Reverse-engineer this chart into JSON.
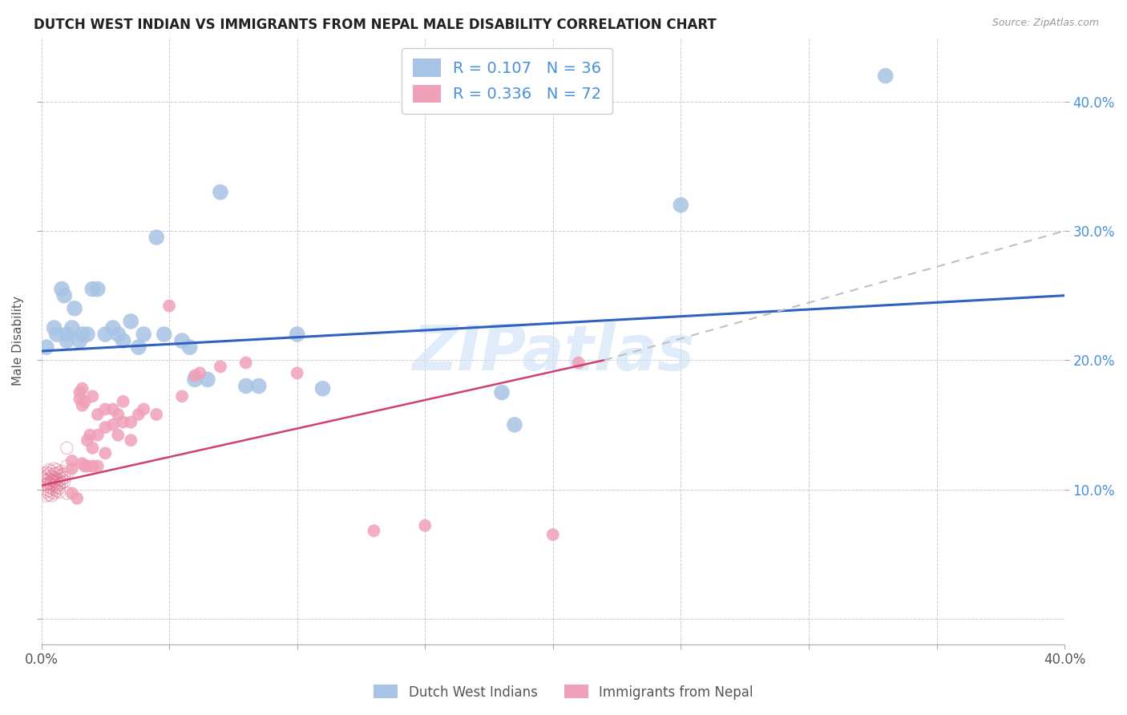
{
  "title": "DUTCH WEST INDIAN VS IMMIGRANTS FROM NEPAL MALE DISABILITY CORRELATION CHART",
  "source": "Source: ZipAtlas.com",
  "ylabel": "Male Disability",
  "xlim": [
    0.0,
    0.4
  ],
  "ylim": [
    -0.02,
    0.45
  ],
  "xticks": [
    0.0,
    0.05,
    0.1,
    0.15,
    0.2,
    0.25,
    0.3,
    0.35,
    0.4
  ],
  "yticks": [
    0.0,
    0.1,
    0.2,
    0.3,
    0.4
  ],
  "color_blue": "#a8c4e5",
  "color_pink": "#f0a0b8",
  "color_blue_line": "#3060c0",
  "color_pink_line": "#d04070",
  "color_pink_outline": "#e07090",
  "watermark": "ZIPatlas",
  "blue_points": [
    [
      0.002,
      0.21
    ],
    [
      0.005,
      0.225
    ],
    [
      0.006,
      0.22
    ],
    [
      0.008,
      0.255
    ],
    [
      0.009,
      0.25
    ],
    [
      0.01,
      0.22
    ],
    [
      0.01,
      0.215
    ],
    [
      0.012,
      0.225
    ],
    [
      0.013,
      0.24
    ],
    [
      0.015,
      0.215
    ],
    [
      0.016,
      0.22
    ],
    [
      0.018,
      0.22
    ],
    [
      0.02,
      0.255
    ],
    [
      0.022,
      0.255
    ],
    [
      0.025,
      0.22
    ],
    [
      0.028,
      0.225
    ],
    [
      0.03,
      0.22
    ],
    [
      0.032,
      0.215
    ],
    [
      0.035,
      0.23
    ],
    [
      0.038,
      0.21
    ],
    [
      0.04,
      0.22
    ],
    [
      0.045,
      0.295
    ],
    [
      0.048,
      0.22
    ],
    [
      0.055,
      0.215
    ],
    [
      0.058,
      0.21
    ],
    [
      0.06,
      0.185
    ],
    [
      0.065,
      0.185
    ],
    [
      0.07,
      0.33
    ],
    [
      0.08,
      0.18
    ],
    [
      0.085,
      0.18
    ],
    [
      0.1,
      0.22
    ],
    [
      0.11,
      0.178
    ],
    [
      0.18,
      0.175
    ],
    [
      0.185,
      0.15
    ],
    [
      0.25,
      0.32
    ],
    [
      0.33,
      0.42
    ]
  ],
  "pink_dense": [
    [
      0.0,
      0.11
    ],
    [
      0.001,
      0.112
    ],
    [
      0.001,
      0.108
    ],
    [
      0.002,
      0.113
    ],
    [
      0.002,
      0.11
    ],
    [
      0.002,
      0.107
    ],
    [
      0.002,
      0.104
    ],
    [
      0.002,
      0.1
    ],
    [
      0.002,
      0.098
    ],
    [
      0.002,
      0.095
    ],
    [
      0.003,
      0.115
    ],
    [
      0.003,
      0.112
    ],
    [
      0.003,
      0.108
    ],
    [
      0.003,
      0.105
    ],
    [
      0.003,
      0.102
    ],
    [
      0.003,
      0.099
    ],
    [
      0.003,
      0.096
    ],
    [
      0.004,
      0.114
    ],
    [
      0.004,
      0.11
    ],
    [
      0.004,
      0.107
    ],
    [
      0.004,
      0.104
    ],
    [
      0.004,
      0.101
    ],
    [
      0.004,
      0.098
    ],
    [
      0.004,
      0.095
    ],
    [
      0.005,
      0.116
    ],
    [
      0.005,
      0.112
    ],
    [
      0.005,
      0.109
    ],
    [
      0.005,
      0.106
    ],
    [
      0.005,
      0.103
    ],
    [
      0.005,
      0.1
    ],
    [
      0.005,
      0.097
    ],
    [
      0.006,
      0.115
    ],
    [
      0.006,
      0.112
    ],
    [
      0.006,
      0.108
    ],
    [
      0.006,
      0.105
    ],
    [
      0.006,
      0.102
    ],
    [
      0.006,
      0.099
    ],
    [
      0.007,
      0.113
    ],
    [
      0.007,
      0.11
    ],
    [
      0.007,
      0.107
    ],
    [
      0.007,
      0.104
    ],
    [
      0.007,
      0.101
    ],
    [
      0.007,
      0.098
    ],
    [
      0.008,
      0.114
    ],
    [
      0.008,
      0.111
    ],
    [
      0.008,
      0.108
    ],
    [
      0.008,
      0.105
    ],
    [
      0.009,
      0.112
    ],
    [
      0.009,
      0.109
    ],
    [
      0.009,
      0.106
    ],
    [
      0.01,
      0.132
    ],
    [
      0.01,
      0.118
    ],
    [
      0.01,
      0.112
    ],
    [
      0.01,
      0.097
    ]
  ],
  "pink_points": [
    [
      0.012,
      0.122
    ],
    [
      0.012,
      0.116
    ],
    [
      0.012,
      0.097
    ],
    [
      0.014,
      0.093
    ],
    [
      0.015,
      0.175
    ],
    [
      0.015,
      0.17
    ],
    [
      0.016,
      0.178
    ],
    [
      0.016,
      0.165
    ],
    [
      0.016,
      0.12
    ],
    [
      0.017,
      0.168
    ],
    [
      0.017,
      0.118
    ],
    [
      0.018,
      0.138
    ],
    [
      0.018,
      0.118
    ],
    [
      0.019,
      0.142
    ],
    [
      0.02,
      0.172
    ],
    [
      0.02,
      0.132
    ],
    [
      0.02,
      0.118
    ],
    [
      0.022,
      0.158
    ],
    [
      0.022,
      0.142
    ],
    [
      0.022,
      0.118
    ],
    [
      0.025,
      0.162
    ],
    [
      0.025,
      0.148
    ],
    [
      0.025,
      0.128
    ],
    [
      0.028,
      0.162
    ],
    [
      0.028,
      0.15
    ],
    [
      0.03,
      0.158
    ],
    [
      0.03,
      0.142
    ],
    [
      0.032,
      0.168
    ],
    [
      0.032,
      0.152
    ],
    [
      0.035,
      0.152
    ],
    [
      0.035,
      0.138
    ],
    [
      0.038,
      0.158
    ],
    [
      0.04,
      0.162
    ],
    [
      0.045,
      0.158
    ],
    [
      0.05,
      0.242
    ],
    [
      0.055,
      0.172
    ],
    [
      0.06,
      0.188
    ],
    [
      0.062,
      0.19
    ],
    [
      0.07,
      0.195
    ],
    [
      0.08,
      0.198
    ],
    [
      0.1,
      0.19
    ],
    [
      0.13,
      0.068
    ],
    [
      0.15,
      0.072
    ],
    [
      0.2,
      0.065
    ],
    [
      0.21,
      0.198
    ]
  ]
}
